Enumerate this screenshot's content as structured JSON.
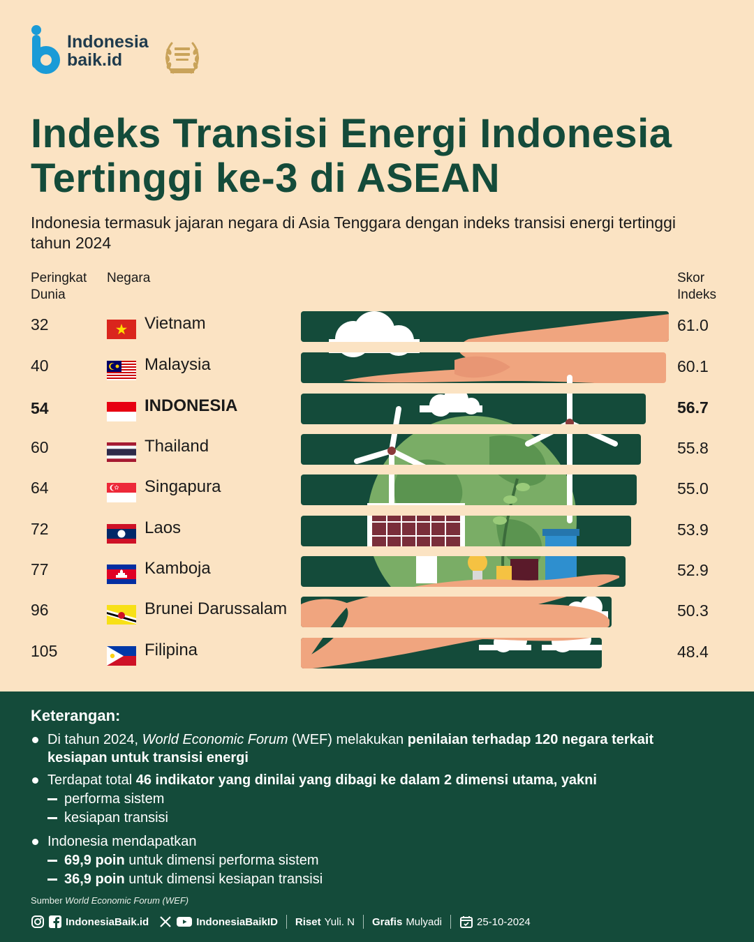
{
  "brand": {
    "line1": "Indonesia",
    "line2": "baik.id"
  },
  "title": "Indeks Transisi Energi Indonesia Tertinggi ke-3 di ASEAN",
  "subtitle": "Indonesia termasuk jajaran negara di Asia Tenggara dengan indeks transisi energi tertinggi tahun 2024",
  "headers": {
    "rank": "Peringkat Dunia",
    "country": "Negara",
    "score": "Skor Indeks"
  },
  "chart_data": {
    "type": "bar",
    "title": "Indeks Transisi Energi Indonesia Tertinggi ke-3 di ASEAN",
    "orientation": "horizontal",
    "categories": [
      "Vietnam",
      "Malaysia",
      "INDONESIA",
      "Thailand",
      "Singapura",
      "Laos",
      "Kamboja",
      "Brunei Darussalam",
      "Filipina"
    ],
    "ranks": [
      "32",
      "40",
      "54",
      "60",
      "64",
      "72",
      "77",
      "96",
      "105"
    ],
    "values": [
      61.0,
      60.1,
      56.7,
      55.8,
      55.0,
      53.9,
      52.9,
      50.3,
      48.4
    ],
    "value_labels": [
      "61.0",
      "60.1",
      "56.7",
      "55.8",
      "55.0",
      "53.9",
      "52.9",
      "50.3",
      "48.4"
    ],
    "highlight": "INDONESIA",
    "colors": {
      "bar": "#144b3a",
      "background": "#fbe3c3"
    }
  },
  "footer": {
    "heading": "Keterangan:",
    "note1": {
      "a": "Di tahun 2024, ",
      "b": "World Economic Forum",
      "c": " (WEF) melakukan ",
      "d": "penilaian terhadap 120 negara terkait kesiapan untuk transisi energi"
    },
    "note2": {
      "a": "Terdapat total ",
      "b": "46 indikator yang dinilai yang dibagi ke dalam 2 dimensi utama, yakni"
    },
    "note2_items": [
      "performa sistem",
      "kesiapan transisi"
    ],
    "note3": "Indonesia mendapatkan",
    "note3_items": [
      {
        "b": "69,9 poin",
        "t": " untuk dimensi performa sistem"
      },
      {
        "b": "36,9 poin",
        "t": " untuk dimensi kesiapan transisi"
      }
    ],
    "source": {
      "label": "Sumber ",
      "name": "World Economic Forum (WEF)"
    },
    "social": {
      "handle1": "IndonesiaBaik.id",
      "handle2": "IndonesiaBaikID",
      "riset_label": "Riset",
      "riset_name": "Yuli. N",
      "grafis_label": "Grafis",
      "grafis_name": "Mulyadi",
      "date": "25-10-2024"
    }
  }
}
